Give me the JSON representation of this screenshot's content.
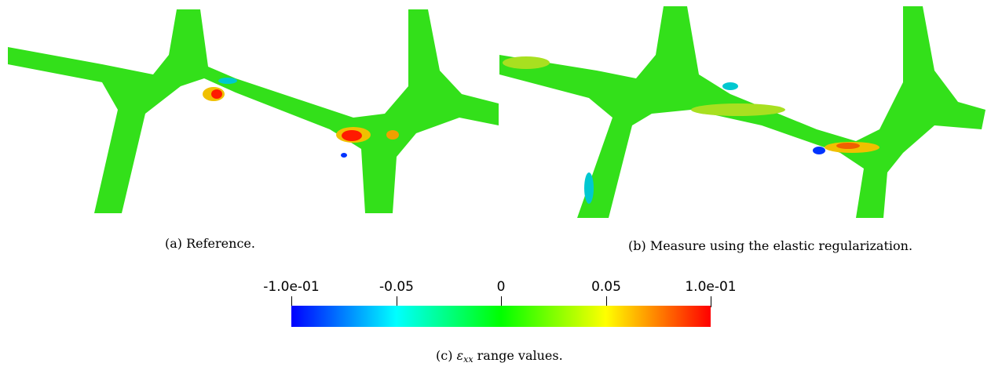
{
  "figure": {
    "panel_a": {
      "caption": "(a) Reference."
    },
    "panel_b": {
      "caption": "(b) Measure using the elastic regularization."
    },
    "colorbar": {
      "caption_prefix": "(c) ",
      "caption_symbol": "ε",
      "caption_subscript": "xx",
      "caption_suffix": " range values.",
      "tick_labels": [
        "-1.0e-01",
        "-0.05",
        "0",
        "0.05",
        "1.0e-01"
      ],
      "min": -0.1,
      "max": 0.1,
      "colormap": [
        "#0000ff",
        "#00ffff",
        "#00ff00",
        "#ffff00",
        "#ff0000"
      ]
    },
    "colors": {
      "base": "#33e01a",
      "high": "#ff1a00",
      "low": "#0033ff",
      "mid_high": "#f0c000",
      "mid_low": "#00c8d0"
    }
  }
}
